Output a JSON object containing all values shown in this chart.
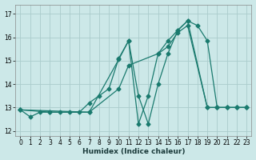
{
  "xlabel": "Humidex (Indice chaleur)",
  "bg_color": "#cce8e8",
  "grid_color": "#aacccc",
  "line_color": "#1a7a6e",
  "xlim": [
    -0.5,
    23.5
  ],
  "ylim": [
    11.8,
    17.4
  ],
  "yticks": [
    12,
    13,
    14,
    15,
    16,
    17
  ],
  "xticks": [
    0,
    1,
    2,
    3,
    4,
    5,
    6,
    7,
    8,
    9,
    10,
    11,
    12,
    13,
    14,
    15,
    16,
    17,
    18,
    19,
    20,
    21,
    22,
    23
  ],
  "series1_x": [
    0,
    1,
    2,
    3,
    4,
    5,
    6,
    7,
    8,
    9,
    10,
    11,
    12,
    13,
    14,
    15,
    16,
    17,
    18,
    19,
    20,
    21,
    22,
    23
  ],
  "series1_y": [
    12.9,
    12.6,
    12.8,
    12.8,
    12.8,
    12.8,
    12.8,
    13.2,
    13.5,
    13.8,
    15.1,
    15.85,
    13.5,
    12.3,
    14.0,
    15.3,
    16.3,
    16.7,
    16.5,
    15.85,
    13.0,
    13.0,
    13.0,
    13.0
  ],
  "series2_x": [
    0,
    3,
    7,
    10,
    11,
    12,
    13,
    14,
    15,
    16,
    17,
    19,
    20,
    21,
    22,
    23
  ],
  "series2_y": [
    12.9,
    12.8,
    12.8,
    15.05,
    15.85,
    12.3,
    13.5,
    15.3,
    15.85,
    16.3,
    16.7,
    13.0,
    13.0,
    13.0,
    13.0,
    13.0
  ],
  "series3_x": [
    0,
    7,
    10,
    11,
    14,
    15,
    16,
    17,
    19,
    20,
    21,
    22,
    23
  ],
  "series3_y": [
    12.9,
    12.8,
    13.8,
    14.8,
    15.3,
    15.6,
    16.2,
    16.5,
    13.0,
    13.0,
    13.0,
    13.0,
    13.0
  ]
}
